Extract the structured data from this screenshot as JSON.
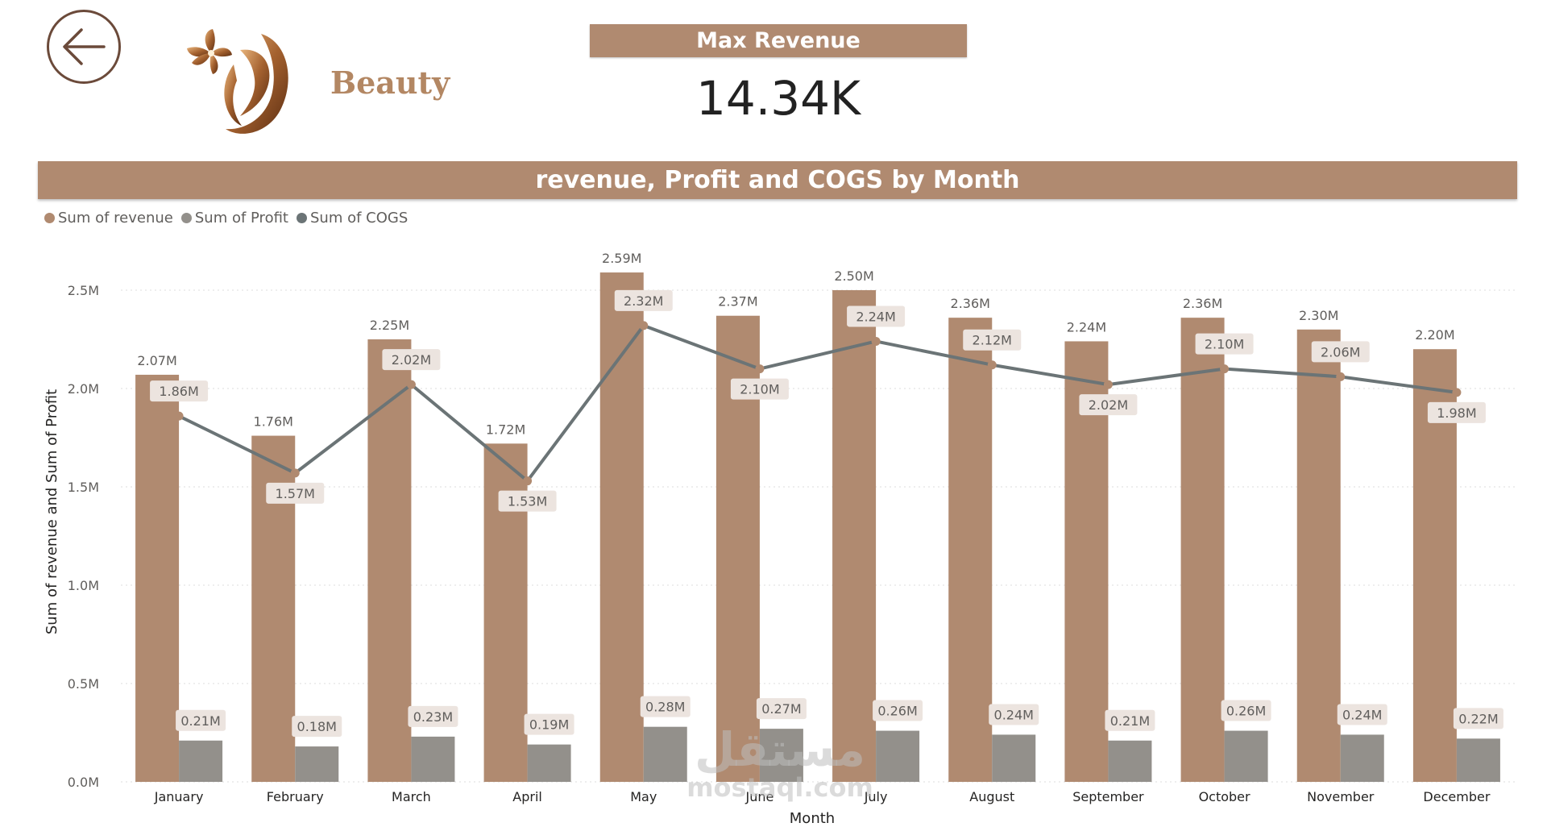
{
  "header": {
    "brand_name": "Beauty",
    "kpi_title": "Max Revenue",
    "kpi_value": "14.34K"
  },
  "icons": {
    "back": "arrow-left-icon",
    "logo": "woman-silhouette-logo"
  },
  "colors": {
    "accent": "#b08a70",
    "revenue": "#b08a70",
    "profit": "#93908b",
    "cogs": "#6b7476",
    "text": "#605e5c"
  },
  "watermark": {
    "arabic": "مستقل",
    "latin": "mostaql.com"
  },
  "chart_data": {
    "type": "bar+line",
    "title": "revenue, Profit and COGS by Month",
    "xlabel": "Month",
    "ylabel": "Sum of revenue and Sum of Profit",
    "ylim": [
      0,
      2.5
    ],
    "yticks": [
      0,
      0.5,
      1.0,
      1.5,
      2.0,
      2.5
    ],
    "ytick_labels": [
      "0.0M",
      "0.5M",
      "1.0M",
      "1.5M",
      "2.0M",
      "2.5M"
    ],
    "grid": true,
    "legend": {
      "position": "top-left",
      "entries": [
        "Sum of revenue",
        "Sum of Profit",
        "Sum of COGS"
      ]
    },
    "categories": [
      "January",
      "February",
      "March",
      "April",
      "May",
      "June",
      "July",
      "August",
      "September",
      "October",
      "November",
      "December"
    ],
    "series": [
      {
        "name": "Sum of revenue",
        "kind": "bar",
        "values": [
          2.07,
          1.76,
          2.25,
          1.72,
          2.59,
          2.37,
          2.5,
          2.36,
          2.24,
          2.36,
          2.3,
          2.2
        ],
        "labels": [
          "2.07M",
          "1.76M",
          "2.25M",
          "1.72M",
          "2.59M",
          "2.37M",
          "2.50M",
          "2.36M",
          "2.24M",
          "2.36M",
          "2.30M",
          "2.20M"
        ]
      },
      {
        "name": "Sum of Profit",
        "kind": "bar",
        "values": [
          0.21,
          0.18,
          0.23,
          0.19,
          0.28,
          0.27,
          0.26,
          0.24,
          0.21,
          0.26,
          0.24,
          0.22
        ],
        "labels": [
          "0.21M",
          "0.18M",
          "0.23M",
          "0.19M",
          "0.28M",
          "0.27M",
          "0.26M",
          "0.24M",
          "0.21M",
          "0.26M",
          "0.24M",
          "0.22M"
        ]
      },
      {
        "name": "Sum of COGS",
        "kind": "line",
        "values": [
          1.86,
          1.57,
          2.02,
          1.53,
          2.32,
          2.1,
          2.24,
          2.12,
          2.02,
          2.1,
          2.06,
          1.98
        ],
        "labels": [
          "1.86M",
          "1.57M",
          "2.02M",
          "1.53M",
          "2.32M",
          "2.10M",
          "2.24M",
          "2.12M",
          "2.02M",
          "2.10M",
          "2.06M",
          "1.98M"
        ]
      }
    ]
  }
}
